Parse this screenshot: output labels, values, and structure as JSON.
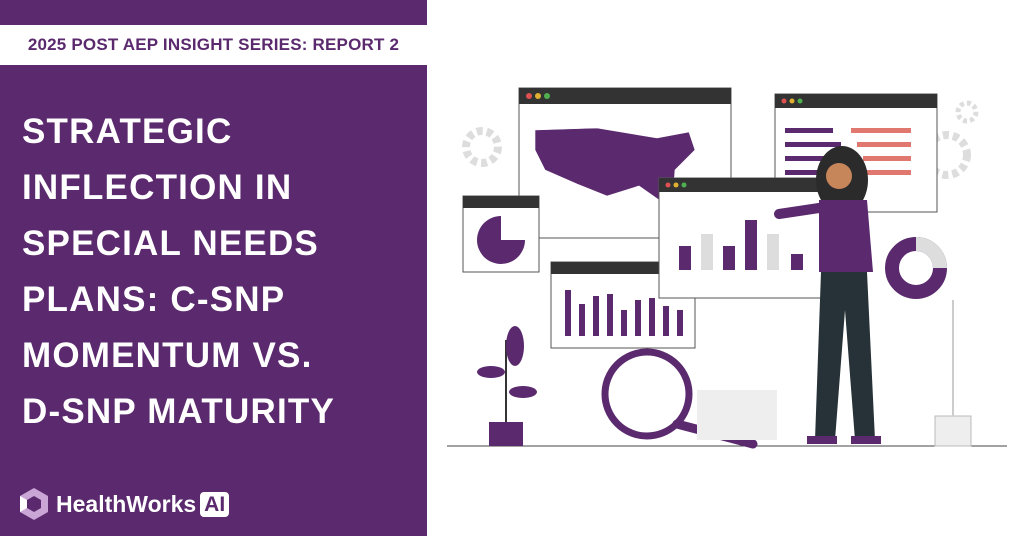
{
  "header": {
    "series": "2025 POST AEP INSIGHT SERIES: REPORT 2"
  },
  "title": {
    "lines": [
      "STRATEGIC",
      "INFLECTION IN",
      "SPECIAL NEEDS",
      "PLANS: C-SNP",
      "MOMENTUM VS.",
      "D-SNP MATURITY"
    ]
  },
  "logo": {
    "name": "HealthWorks",
    "badge": "AI"
  }
}
